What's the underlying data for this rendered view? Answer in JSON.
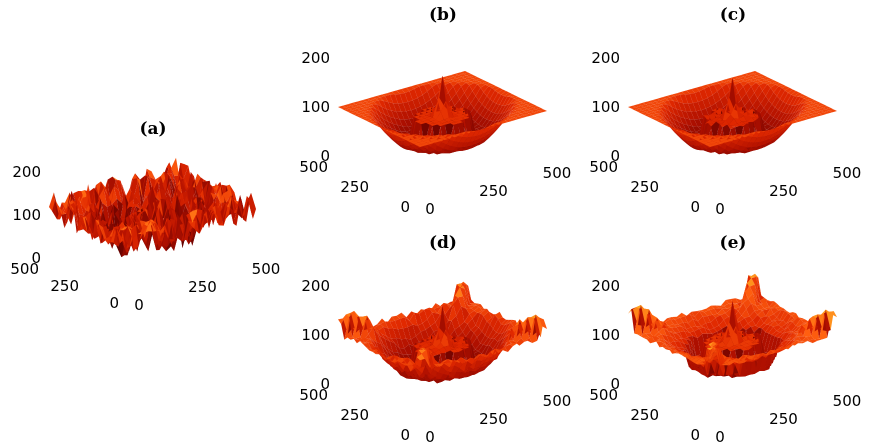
{
  "colormap": [
    "#000000",
    "#5a0000",
    "#b01000",
    "#e02800",
    "#ff6010",
    "#ffa020",
    "#ffe040",
    "#ffffa0"
  ],
  "chart_data": [
    {
      "type": "surface",
      "title": "(a)",
      "variant": "noisy",
      "zlim": [
        0,
        200
      ],
      "xlim": [
        0,
        500
      ],
      "ylim": [
        0,
        500
      ],
      "z_ticks": [
        "0",
        "100",
        "200"
      ],
      "x_ticks": [
        "0",
        "250",
        "500"
      ],
      "y_ticks": [
        "0",
        "250",
        "500"
      ]
    },
    {
      "type": "surface",
      "title": "(b)",
      "variant": "smooth",
      "zlim": [
        0,
        200
      ],
      "xlim": [
        0,
        500
      ],
      "ylim": [
        0,
        500
      ],
      "z_ticks": [
        "0",
        "100",
        "200"
      ],
      "x_ticks": [
        "0",
        "250",
        "500"
      ],
      "y_ticks": [
        "0",
        "250",
        "500"
      ]
    },
    {
      "type": "surface",
      "title": "(c)",
      "variant": "rough-step",
      "zlim": [
        0,
        200
      ],
      "xlim": [
        0,
        500
      ],
      "ylim": [
        0,
        500
      ],
      "z_ticks": [
        "0",
        "100",
        "200"
      ],
      "x_ticks": [
        "0",
        "250",
        "500"
      ],
      "y_ticks": [
        "0",
        "250",
        "500"
      ]
    },
    {
      "type": "surface",
      "title": "(d)",
      "variant": "rough-bowl",
      "zlim": [
        0,
        200
      ],
      "xlim": [
        0,
        500
      ],
      "ylim": [
        0,
        500
      ],
      "z_ticks": [
        "0",
        "100",
        "200"
      ],
      "x_ticks": [
        "0",
        "250",
        "500"
      ],
      "y_ticks": [
        "0",
        "250",
        "500"
      ]
    },
    {
      "type": "surface",
      "title": "(e)",
      "variant": "soft",
      "zlim": [
        0,
        200
      ],
      "xlim": [
        0,
        500
      ],
      "ylim": [
        0,
        500
      ],
      "z_ticks": [
        "0",
        "100",
        "200"
      ],
      "x_ticks": [
        "0",
        "250",
        "500"
      ],
      "y_ticks": [
        "0",
        "250",
        "500"
      ]
    }
  ]
}
